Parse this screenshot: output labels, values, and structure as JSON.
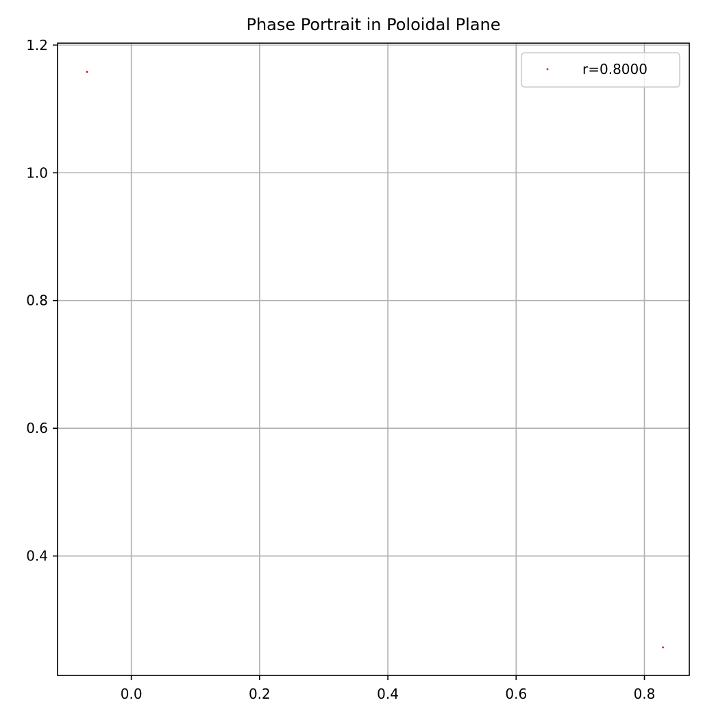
{
  "chart_data": {
    "type": "scatter",
    "title": "Phase Portrait in Poloidal Plane",
    "xlabel": "",
    "ylabel": "",
    "xlim": [
      -0.115,
      0.87
    ],
    "ylim": [
      0.213,
      1.203
    ],
    "xticks": [
      0.0,
      0.2,
      0.4,
      0.6,
      0.8
    ],
    "xtick_labels": [
      "0.0",
      "0.2",
      "0.4",
      "0.6",
      "0.8"
    ],
    "yticks": [
      0.4,
      0.6,
      0.8,
      1.0,
      1.2
    ],
    "ytick_labels": [
      "0.4",
      "0.6",
      "0.8",
      "1.0",
      "1.2"
    ],
    "grid": true,
    "legend_position": "top-right",
    "series": [
      {
        "name": "r=0.8000",
        "color": "#ff0000",
        "marker": "point",
        "points": [
          {
            "x": -0.069,
            "y": 1.158
          },
          {
            "x": 0.829,
            "y": 0.257
          }
        ]
      }
    ]
  }
}
